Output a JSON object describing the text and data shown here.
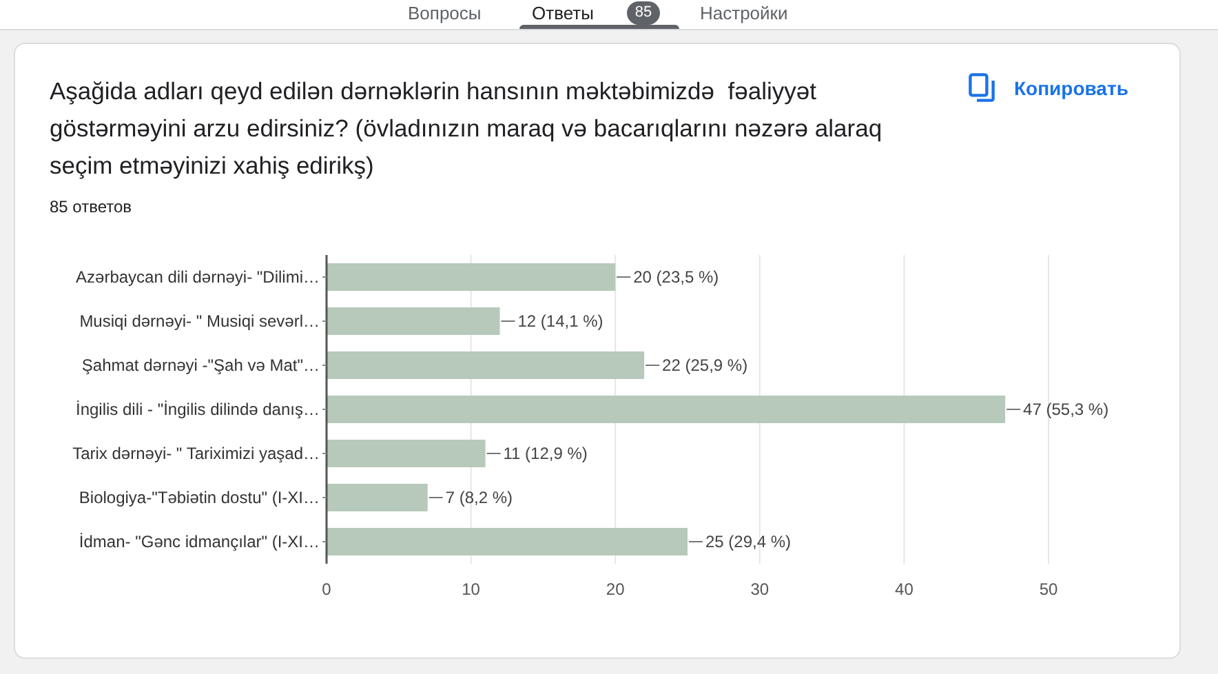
{
  "chart_data": {
    "type": "bar",
    "orientation": "horizontal",
    "title": "Aşağida adları qeyd edilən dərnəklərin hansının məktəbimizdə  fəaliyyət göstərməyini arzu edirsiniz? (övladınızın maraq və bacarıqlarını nəzərə alaraq seçim etməyinizi xahiş edirikş)",
    "subtitle": "85 ответов",
    "categories": [
      "Azərbaycan dili dərnəyi- \"Dilimi…",
      "Musiqi dərnəyi- \" Musiqi sevərl…",
      "Şahmat dərnəyi -\"Şah və Mat\"…",
      "İngilis dili - \"İngilis dilində danış…",
      "Tarix dərnəyi- \" Tariximizi yaşad…",
      "Biologiya-\"Təbiətin dostu\" (I-XI…",
      "İdman- \"Gənc idmançılar\" (I-XI…"
    ],
    "values": [
      20,
      12,
      22,
      47,
      11,
      7,
      25
    ],
    "value_labels": [
      "20 (23,5 %)",
      "12 (14,1 %)",
      "22 (25,9 %)",
      "47 (55,3 %)",
      "11 (12,9 %)",
      "7 (8,2 %)",
      "25 (29,4 %)"
    ],
    "color": "#b6c9ba",
    "xlim": [
      0,
      50
    ],
    "xticks": [
      0,
      10,
      20,
      30,
      40,
      50
    ],
    "grid": "x",
    "annotations": [
      "Копировать",
      "Вопросы",
      "Ответы",
      "85",
      "Настройки"
    ]
  }
}
